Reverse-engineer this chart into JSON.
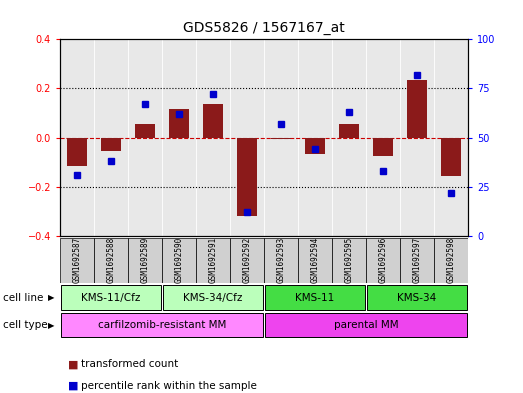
{
  "title": "GDS5826 / 1567167_at",
  "samples": [
    "GSM1692587",
    "GSM1692588",
    "GSM1692589",
    "GSM1692590",
    "GSM1692591",
    "GSM1692592",
    "GSM1692593",
    "GSM1692594",
    "GSM1692595",
    "GSM1692596",
    "GSM1692597",
    "GSM1692598"
  ],
  "transformed_count": [
    -0.115,
    -0.055,
    0.055,
    0.115,
    0.135,
    -0.32,
    -0.005,
    -0.065,
    0.055,
    -0.075,
    0.235,
    -0.155
  ],
  "percentile_rank": [
    31,
    38,
    67,
    62,
    72,
    12,
    57,
    44,
    63,
    33,
    82,
    22
  ],
  "bar_color": "#8B1A1A",
  "dot_color": "#0000CC",
  "ylim_left": [
    -0.4,
    0.4
  ],
  "ylim_right": [
    0,
    100
  ],
  "yticks_left": [
    -0.4,
    -0.2,
    0.0,
    0.2,
    0.4
  ],
  "yticks_right": [
    0,
    25,
    50,
    75,
    100
  ],
  "cell_line_groups": [
    {
      "label": "KMS-11/Cfz",
      "start": 0,
      "end": 3,
      "color": "#BBFFBB"
    },
    {
      "label": "KMS-34/Cfz",
      "start": 3,
      "end": 6,
      "color": "#BBFFBB"
    },
    {
      "label": "KMS-11",
      "start": 6,
      "end": 9,
      "color": "#44DD44"
    },
    {
      "label": "KMS-34",
      "start": 9,
      "end": 12,
      "color": "#44DD44"
    }
  ],
  "cell_type_groups": [
    {
      "label": "carfilzomib-resistant MM",
      "start": 0,
      "end": 6,
      "color": "#FF88FF"
    },
    {
      "label": "parental MM",
      "start": 6,
      "end": 12,
      "color": "#EE44EE"
    }
  ],
  "cell_line_label": "cell line",
  "cell_type_label": "cell type",
  "legend_items": [
    {
      "color": "#8B1A1A",
      "label": "transformed count"
    },
    {
      "color": "#0000CC",
      "label": "percentile rank within the sample"
    }
  ],
  "plot_bg": "#E8E8E8",
  "title_fontsize": 10,
  "tick_fontsize": 7,
  "sample_fontsize": 5.5,
  "panel_fontsize": 7.5,
  "legend_fontsize": 7.5
}
